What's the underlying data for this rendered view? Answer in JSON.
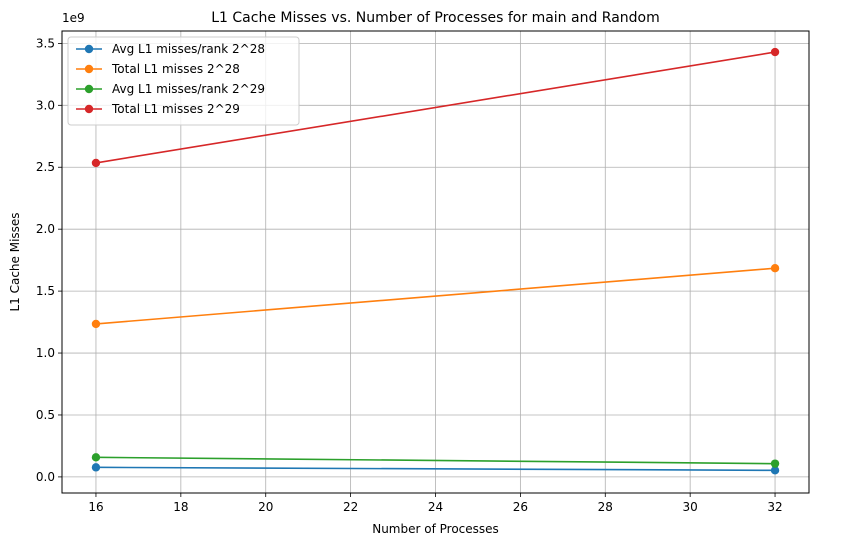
{
  "chart_data": {
    "type": "line",
    "title": "L1 Cache Misses vs. Number of Processes for main and Random",
    "xlabel": "Number of Processes",
    "ylabel": "L1 Cache Misses",
    "y_offset_label": "1e9",
    "xlim": [
      15.2,
      32.8
    ],
    "ylim": [
      -0.13,
      3.6
    ],
    "x_ticks": [
      16,
      18,
      20,
      22,
      24,
      26,
      28,
      30,
      32
    ],
    "y_ticks": [
      0.0,
      0.5,
      1.0,
      1.5,
      2.0,
      2.5,
      3.0,
      3.5
    ],
    "x_tick_labels": [
      "16",
      "18",
      "20",
      "22",
      "24",
      "26",
      "28",
      "30",
      "32"
    ],
    "y_tick_labels": [
      "0.0",
      "0.5",
      "1.0",
      "1.5",
      "2.0",
      "2.5",
      "3.0",
      "3.5"
    ],
    "grid": true,
    "legend_position": "top-left",
    "series": [
      {
        "name": "Avg L1 misses/rank 2^28",
        "color": "#1f77b4",
        "x": [
          16,
          32
        ],
        "y": [
          0.077,
          0.053
        ]
      },
      {
        "name": "Total L1 misses 2^28",
        "color": "#ff7f0e",
        "x": [
          16,
          32
        ],
        "y": [
          1.235,
          1.685
        ]
      },
      {
        "name": "Avg L1 misses/rank 2^29",
        "color": "#2ca02c",
        "x": [
          16,
          32
        ],
        "y": [
          0.158,
          0.107
        ]
      },
      {
        "name": "Total L1 misses 2^29",
        "color": "#d62728",
        "x": [
          16,
          32
        ],
        "y": [
          2.535,
          3.43
        ]
      }
    ]
  }
}
